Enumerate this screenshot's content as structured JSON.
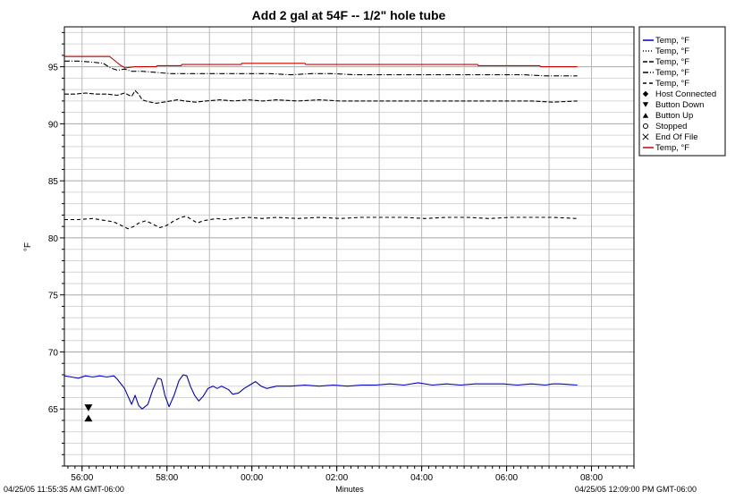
{
  "chart_data": {
    "type": "line",
    "title": "Add 2 gal at 54F -- 1/2\" hole tube",
    "xlabel": "Minutes",
    "ylabel": "°F",
    "start_label": "04/25/05 11:55:35 AM GMT-06:00",
    "end_label": "04/25/05 12:09:00 PM GMT-06:00",
    "xlim": [
      0,
      805
    ],
    "ylim": [
      60,
      98.5
    ],
    "yticks": [
      65,
      70,
      75,
      80,
      85,
      90,
      95
    ],
    "xticks": [
      {
        "t": 25,
        "label": "56:00"
      },
      {
        "t": 145,
        "label": "58:00"
      },
      {
        "t": 265,
        "label": "00:00"
      },
      {
        "t": 385,
        "label": "02:00"
      },
      {
        "t": 505,
        "label": "04:00"
      },
      {
        "t": 625,
        "label": "06:00"
      },
      {
        "t": 745,
        "label": "08:00"
      }
    ],
    "grid": true,
    "legend_position": "right",
    "series": [
      {
        "name": "Temp, °F",
        "legend_style": "solid",
        "color": "#0000cc",
        "dash": "",
        "points": [
          [
            0,
            67.9
          ],
          [
            10,
            67.8
          ],
          [
            20,
            67.7
          ],
          [
            30,
            67.9
          ],
          [
            40,
            67.8
          ],
          [
            50,
            67.9
          ],
          [
            60,
            67.8
          ],
          [
            70,
            67.9
          ],
          [
            75,
            67.6
          ],
          [
            85,
            66.8
          ],
          [
            95,
            65.4
          ],
          [
            100,
            66.2
          ],
          [
            105,
            65.3
          ],
          [
            110,
            65.0
          ],
          [
            118,
            65.4
          ],
          [
            125,
            66.7
          ],
          [
            132,
            67.7
          ],
          [
            137,
            67.6
          ],
          [
            142,
            66.2
          ],
          [
            148,
            65.2
          ],
          [
            155,
            66.2
          ],
          [
            162,
            67.5
          ],
          [
            168,
            68.0
          ],
          [
            173,
            67.9
          ],
          [
            178,
            67.0
          ],
          [
            184,
            66.2
          ],
          [
            190,
            65.7
          ],
          [
            196,
            66.1
          ],
          [
            203,
            66.8
          ],
          [
            210,
            67.0
          ],
          [
            216,
            66.8
          ],
          [
            222,
            67.0
          ],
          [
            232,
            66.7
          ],
          [
            238,
            66.3
          ],
          [
            246,
            66.4
          ],
          [
            254,
            66.8
          ],
          [
            262,
            67.1
          ],
          [
            270,
            67.4
          ],
          [
            278,
            67.0
          ],
          [
            286,
            66.8
          ],
          [
            300,
            67.0
          ],
          [
            320,
            67.0
          ],
          [
            340,
            67.1
          ],
          [
            360,
            67.0
          ],
          [
            380,
            67.1
          ],
          [
            400,
            67.0
          ],
          [
            420,
            67.1
          ],
          [
            440,
            67.1
          ],
          [
            460,
            67.2
          ],
          [
            480,
            67.1
          ],
          [
            500,
            67.3
          ],
          [
            520,
            67.1
          ],
          [
            540,
            67.2
          ],
          [
            560,
            67.1
          ],
          [
            580,
            67.2
          ],
          [
            600,
            67.2
          ],
          [
            620,
            67.2
          ],
          [
            640,
            67.1
          ],
          [
            660,
            67.2
          ],
          [
            680,
            67.1
          ],
          [
            690,
            67.2
          ],
          [
            700,
            67.2
          ],
          [
            725,
            67.1
          ]
        ]
      },
      {
        "name": "Temp, °F",
        "legend_style": "dotted",
        "color": "#000000",
        "dash": "1,2",
        "points": []
      },
      {
        "name": "Temp, °F",
        "legend_style": "dashed",
        "color": "#000000",
        "dash": "5,2",
        "points": [
          [
            0,
            92.6
          ],
          [
            15,
            92.6
          ],
          [
            30,
            92.7
          ],
          [
            45,
            92.6
          ],
          [
            60,
            92.6
          ],
          [
            75,
            92.5
          ],
          [
            85,
            92.7
          ],
          [
            95,
            92.4
          ],
          [
            100,
            92.9
          ],
          [
            105,
            92.6
          ],
          [
            110,
            92.1
          ],
          [
            115,
            92.0
          ],
          [
            122,
            91.9
          ],
          [
            130,
            91.8
          ],
          [
            140,
            91.9
          ],
          [
            150,
            92.0
          ],
          [
            160,
            92.1
          ],
          [
            170,
            92.0
          ],
          [
            185,
            91.9
          ],
          [
            200,
            92.0
          ],
          [
            220,
            92.1
          ],
          [
            240,
            92.0
          ],
          [
            260,
            92.1
          ],
          [
            280,
            92.0
          ],
          [
            300,
            92.1
          ],
          [
            330,
            92.0
          ],
          [
            360,
            92.1
          ],
          [
            390,
            92.0
          ],
          [
            420,
            92.0
          ],
          [
            450,
            92.0
          ],
          [
            480,
            92.0
          ],
          [
            510,
            92.0
          ],
          [
            540,
            92.0
          ],
          [
            570,
            92.0
          ],
          [
            600,
            92.0
          ],
          [
            630,
            92.0
          ],
          [
            660,
            92.0
          ],
          [
            690,
            91.9
          ],
          [
            725,
            92.0
          ]
        ]
      },
      {
        "name": "Temp, °F",
        "legend_style": "dash-dot",
        "color": "#000000",
        "dash": "6,2,1,2",
        "points": [
          [
            0,
            95.5
          ],
          [
            20,
            95.5
          ],
          [
            40,
            95.4
          ],
          [
            55,
            95.3
          ],
          [
            65,
            94.9
          ],
          [
            75,
            94.7
          ],
          [
            85,
            94.8
          ],
          [
            95,
            94.6
          ],
          [
            110,
            94.6
          ],
          [
            130,
            94.5
          ],
          [
            150,
            94.4
          ],
          [
            175,
            94.4
          ],
          [
            200,
            94.4
          ],
          [
            230,
            94.4
          ],
          [
            260,
            94.4
          ],
          [
            290,
            94.4
          ],
          [
            320,
            94.3
          ],
          [
            350,
            94.4
          ],
          [
            380,
            94.4
          ],
          [
            410,
            94.3
          ],
          [
            440,
            94.3
          ],
          [
            470,
            94.3
          ],
          [
            500,
            94.3
          ],
          [
            530,
            94.3
          ],
          [
            560,
            94.3
          ],
          [
            590,
            94.3
          ],
          [
            620,
            94.3
          ],
          [
            650,
            94.3
          ],
          [
            680,
            94.2
          ],
          [
            725,
            94.2
          ]
        ]
      },
      {
        "name": "Temp, °F",
        "legend_style": "dashed",
        "color": "#000000",
        "dash": "4,3",
        "points": [
          [
            0,
            81.6
          ],
          [
            20,
            81.6
          ],
          [
            40,
            81.7
          ],
          [
            60,
            81.5
          ],
          [
            70,
            81.4
          ],
          [
            80,
            81.1
          ],
          [
            90,
            80.8
          ],
          [
            98,
            81.0
          ],
          [
            105,
            81.3
          ],
          [
            115,
            81.5
          ],
          [
            125,
            81.2
          ],
          [
            135,
            80.9
          ],
          [
            145,
            81.1
          ],
          [
            155,
            81.5
          ],
          [
            165,
            81.8
          ],
          [
            172,
            81.9
          ],
          [
            180,
            81.6
          ],
          [
            188,
            81.3
          ],
          [
            196,
            81.5
          ],
          [
            206,
            81.6
          ],
          [
            216,
            81.7
          ],
          [
            226,
            81.6
          ],
          [
            240,
            81.7
          ],
          [
            260,
            81.8
          ],
          [
            280,
            81.7
          ],
          [
            300,
            81.8
          ],
          [
            330,
            81.7
          ],
          [
            360,
            81.8
          ],
          [
            390,
            81.7
          ],
          [
            420,
            81.8
          ],
          [
            450,
            81.8
          ],
          [
            480,
            81.8
          ],
          [
            510,
            81.7
          ],
          [
            540,
            81.8
          ],
          [
            570,
            81.8
          ],
          [
            600,
            81.7
          ],
          [
            630,
            81.8
          ],
          [
            660,
            81.8
          ],
          [
            690,
            81.8
          ],
          [
            725,
            81.7
          ]
        ]
      },
      {
        "name": "Host Connected",
        "legend_style": "marker-diamond",
        "color": "#000000",
        "dash": "",
        "points": []
      },
      {
        "name": "Button Down",
        "legend_style": "marker-triangle-down",
        "color": "#000000",
        "dash": "",
        "points": [
          [
            34,
            65.1
          ]
        ]
      },
      {
        "name": "Button Up",
        "legend_style": "marker-triangle-up",
        "color": "#000000",
        "dash": "",
        "points": [
          [
            34,
            64.2
          ]
        ]
      },
      {
        "name": "Stopped",
        "legend_style": "marker-circle",
        "color": "#000000",
        "dash": "",
        "points": []
      },
      {
        "name": "End Of File",
        "legend_style": "marker-x",
        "color": "#000000",
        "dash": "",
        "points": []
      },
      {
        "name": "Temp, °F",
        "legend_style": "solid",
        "color": "#cc0000",
        "dash": "",
        "points": [
          [
            0,
            95.9
          ],
          [
            64,
            95.9
          ],
          [
            70,
            95.6
          ],
          [
            80,
            95.1
          ],
          [
            86,
            94.9
          ],
          [
            100,
            95.0
          ],
          [
            130,
            95.0
          ],
          [
            131,
            95.1
          ],
          [
            165,
            95.1
          ],
          [
            166,
            95.2
          ],
          [
            250,
            95.2
          ],
          [
            251,
            95.3
          ],
          [
            340,
            95.3
          ],
          [
            341,
            95.2
          ],
          [
            584,
            95.2
          ],
          [
            585,
            95.1
          ],
          [
            672,
            95.1
          ],
          [
            673,
            95.0
          ],
          [
            725,
            95.0
          ]
        ]
      }
    ]
  }
}
